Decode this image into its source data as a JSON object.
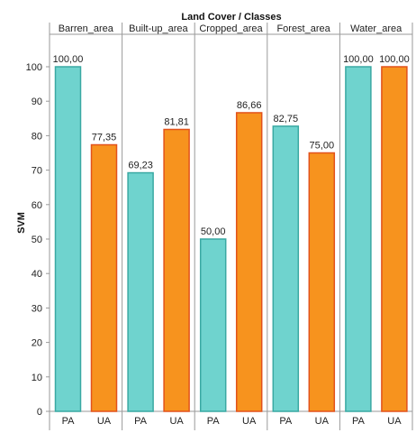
{
  "chart_data": {
    "type": "bar",
    "title": "Land Cover / Classes",
    "ylabel": "SVM",
    "xlabel": "",
    "ylim": [
      0,
      100
    ],
    "yticks": [
      0,
      10,
      20,
      30,
      40,
      50,
      60,
      70,
      80,
      90,
      100
    ],
    "grid": false,
    "groups": [
      "Barren_area",
      "Built-up_area",
      "Cropped_area",
      "Forest_area",
      "Water_area"
    ],
    "subcategories": [
      "PA",
      "UA"
    ],
    "series": [
      {
        "values": [
          100.0,
          69.23,
          50.0,
          82.75,
          100.0
        ],
        "labels": [
          "100,00",
          "69,23",
          "50,00",
          "82,75",
          "100,00"
        ]
      },
      {
        "values": [
          77.35,
          81.81,
          86.66,
          75.0,
          100.0
        ],
        "labels": [
          "77,35",
          "81,81",
          "86,66",
          "75,00",
          "100,00"
        ]
      }
    ],
    "colors": {
      "series_fill": [
        "#6fd3ce",
        "#f7931e"
      ],
      "series_stroke": [
        "#3aa9a3",
        "#e2521b"
      ],
      "axis": "#9a9a9a"
    }
  }
}
